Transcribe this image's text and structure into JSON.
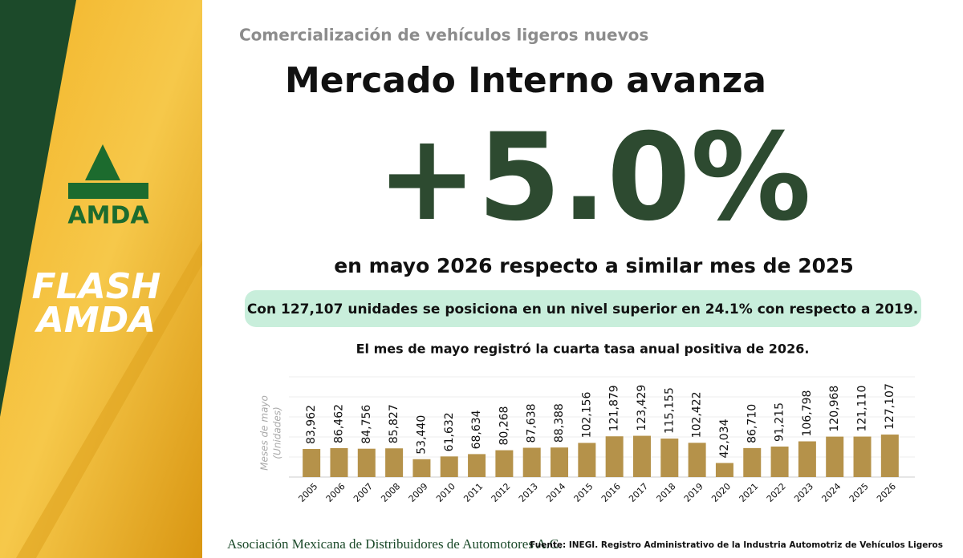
{
  "header": {
    "subtitle": "Comercialización de vehículos ligeros nuevos",
    "title": "Mercado Interno avanza",
    "headline": "+5.0%",
    "headline_note": "en mayo 2026 respecto a similar mes de 2025",
    "highlight": "Con 127,107 unidades se posiciona en un nivel superior en 24.1% con respecto a 2019.",
    "caption": "El mes de mayo registró la cuarta tasa anual positiva de 2026."
  },
  "brand": {
    "logo": "AMDA",
    "flash_1": "FLASH",
    "flash_2": "AMDA"
  },
  "chart_data": {
    "type": "bar",
    "ylabel": "Meses de mayo",
    "ylabel_unit": "(Unidades)",
    "color": "#b5924a",
    "ylim": [
      0,
      300000
    ],
    "categories": [
      "2005",
      "2006",
      "2007",
      "2008",
      "2009",
      "2010",
      "2011",
      "2012",
      "2013",
      "2014",
      "2015",
      "2016",
      "2017",
      "2018",
      "2019",
      "2020",
      "2021",
      "2022",
      "2023",
      "2024",
      "2025",
      "2026"
    ],
    "values": [
      83962,
      86462,
      84756,
      85827,
      53440,
      61632,
      68634,
      80268,
      87638,
      88388,
      102156,
      121879,
      123429,
      115155,
      102422,
      42034,
      86710,
      91215,
      106798,
      120968,
      121110,
      127107
    ],
    "value_labels": [
      "83,962",
      "86,462",
      "84,756",
      "85,827",
      "53,440",
      "61,632",
      "68,634",
      "80,268",
      "87,638",
      "88,388",
      "102,156",
      "121,879",
      "123,429",
      "115,155",
      "102,422",
      "42,034",
      "86,710",
      "91,215",
      "106,798",
      "120,968",
      "121,110",
      "127,107"
    ]
  },
  "footer": {
    "association": "Asociación Mexicana de Distribuidores de Automotores A.C.",
    "source": "Fuente: INEGI. Registro Administrativo de la Industria Automotriz de Vehículos Ligeros"
  }
}
